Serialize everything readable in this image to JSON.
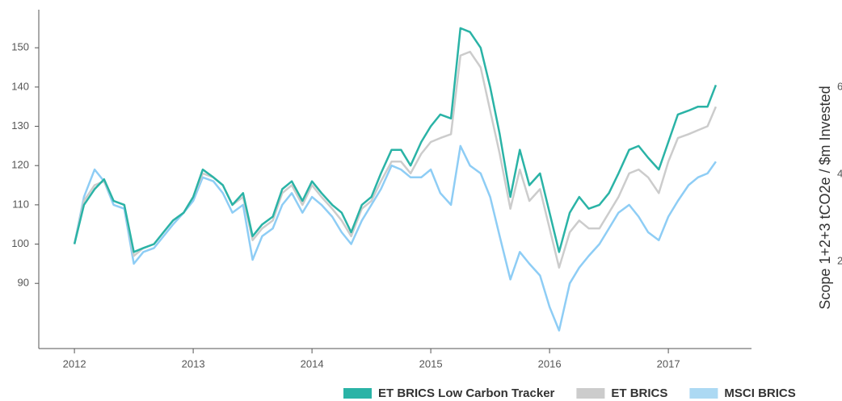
{
  "chart_data": {
    "type": "line",
    "x": [
      2012,
      2012.08,
      2012.17,
      2012.25,
      2012.33,
      2012.42,
      2012.5,
      2012.58,
      2012.67,
      2012.75,
      2012.83,
      2012.92,
      2013,
      2013.08,
      2013.17,
      2013.25,
      2013.33,
      2013.42,
      2013.5,
      2013.58,
      2013.67,
      2013.75,
      2013.83,
      2013.92,
      2014,
      2014.08,
      2014.17,
      2014.25,
      2014.33,
      2014.42,
      2014.5,
      2014.58,
      2014.67,
      2014.75,
      2014.83,
      2014.92,
      2015,
      2015.08,
      2015.17,
      2015.25,
      2015.33,
      2015.42,
      2015.5,
      2015.58,
      2015.67,
      2015.75,
      2015.83,
      2015.92,
      2016,
      2016.08,
      2016.17,
      2016.25,
      2016.33,
      2016.42,
      2016.5,
      2016.58,
      2016.67,
      2016.75,
      2016.83,
      2016.92,
      2017,
      2017.08,
      2017.17,
      2017.25,
      2017.33,
      2017.4
    ],
    "series": [
      {
        "name": "ET BRICS Low Carbon Tracker",
        "color": "#2ab3a6",
        "values": [
          100,
          110,
          114,
          116.5,
          111,
          110,
          98,
          99,
          100,
          103,
          106,
          108,
          112,
          119,
          117,
          115,
          110,
          113,
          102,
          105,
          107,
          114,
          116,
          111,
          116,
          113,
          110,
          108,
          103,
          110,
          112,
          118,
          124,
          124,
          120,
          126,
          130,
          133,
          132,
          155,
          154,
          150,
          140,
          128,
          112,
          124,
          115,
          118,
          108,
          98,
          108,
          112,
          109,
          110,
          113,
          118,
          124,
          125,
          122,
          119,
          126,
          133,
          134,
          135,
          135,
          140.5
        ]
      },
      {
        "name": "ET BRICS",
        "color": "#cccccc",
        "values": [
          100,
          111,
          115,
          116,
          111,
          110,
          97,
          99,
          100,
          103,
          106,
          108,
          112,
          118,
          117,
          115,
          110,
          112,
          101,
          104,
          106,
          113,
          115,
          110,
          115,
          112,
          109,
          106,
          102,
          109,
          111,
          116,
          121,
          121,
          118,
          123,
          126,
          127,
          128,
          148,
          149,
          145,
          134,
          123,
          109,
          119,
          111,
          114,
          104,
          94,
          103,
          106,
          104,
          104,
          108,
          112,
          118,
          119,
          117,
          113,
          121,
          127,
          128,
          129,
          130,
          135
        ]
      },
      {
        "name": "MSCI BRICS",
        "color": "#8ecdf5",
        "legend_color": "#acd9f3",
        "values": [
          100,
          112,
          119,
          116,
          110,
          109,
          95,
          98,
          99,
          102,
          105,
          108,
          111,
          117,
          116,
          113,
          108,
          110,
          96,
          102,
          104,
          110,
          113,
          108,
          112,
          110,
          107,
          103,
          100,
          106,
          110,
          114,
          120,
          119,
          117,
          117,
          119,
          113,
          110,
          125,
          120,
          118,
          112,
          102,
          91,
          98,
          95,
          92,
          84,
          78,
          90,
          94,
          97,
          100,
          104,
          108,
          110,
          107,
          103,
          101,
          107,
          111,
          115,
          117,
          118,
          121
        ]
      }
    ],
    "xlim": [
      2011.7,
      2017.7
    ],
    "xticks": [
      2012,
      2013,
      2014,
      2015,
      2016,
      2017
    ],
    "ylim": [
      73.4,
      159.7
    ],
    "yticks": [
      90,
      100,
      110,
      120,
      130,
      140,
      150
    ],
    "y2_label": "Scope 1+2+3 tCO2e / $m Invested",
    "y2lim": [
      0,
      7.78
    ],
    "y2ticks": [
      2,
      4,
      6
    ],
    "legend": "bottom",
    "grid": false
  }
}
